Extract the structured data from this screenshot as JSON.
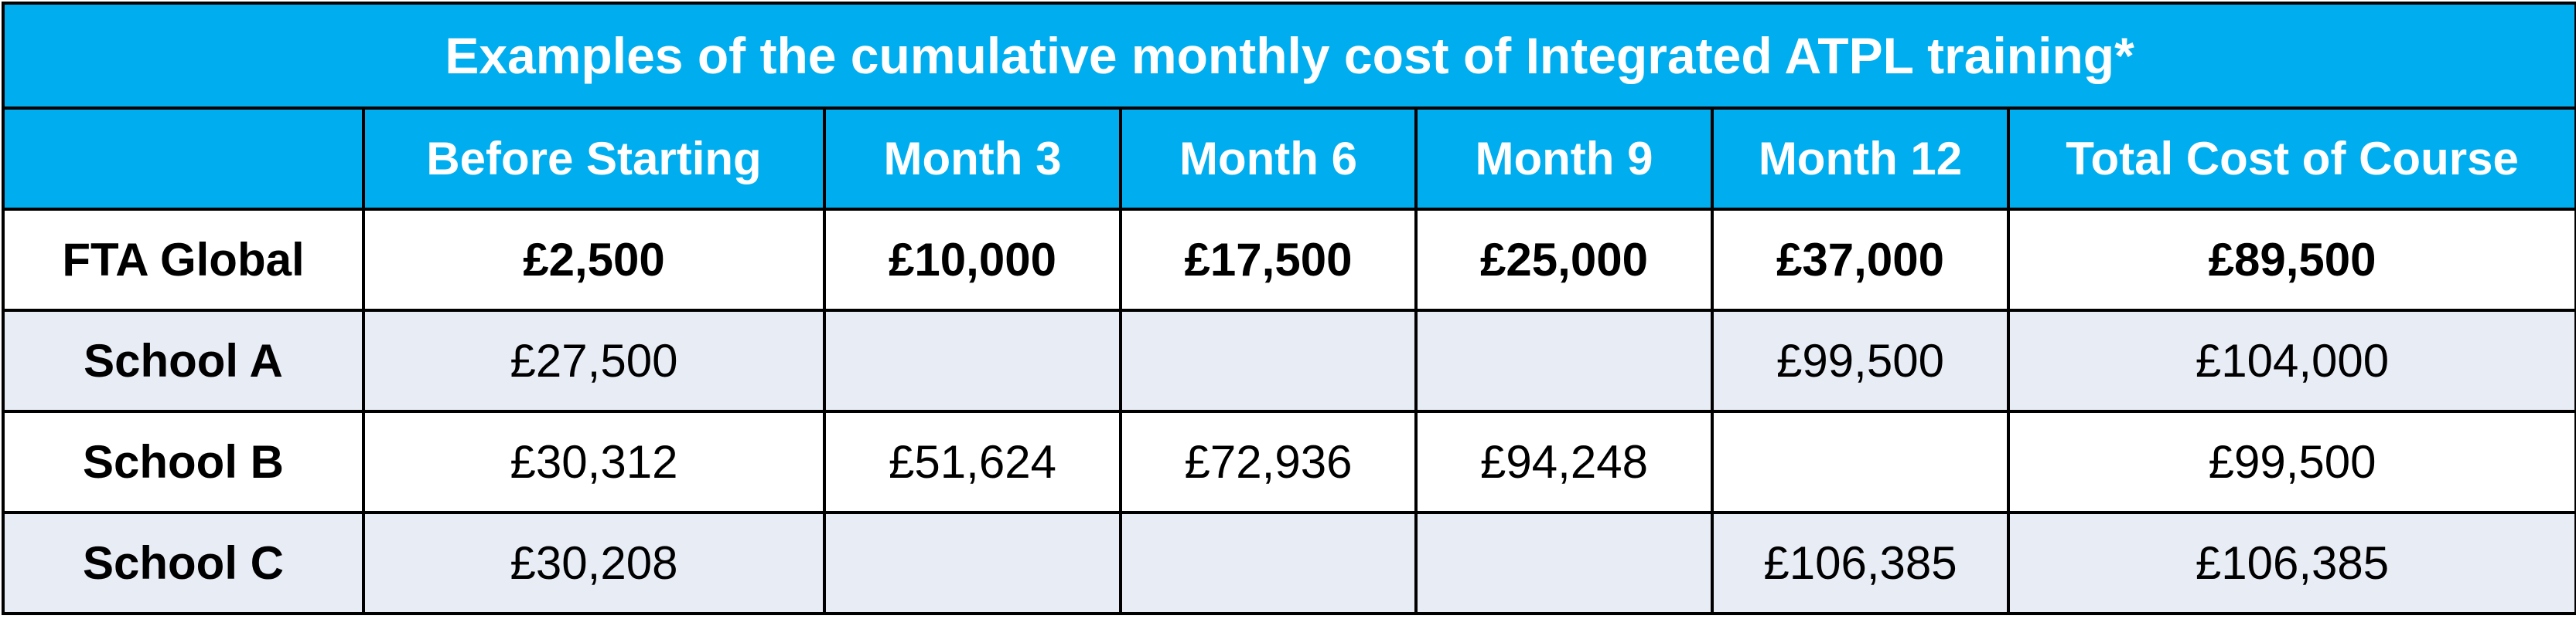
{
  "chart_data": {
    "type": "table",
    "title": "Examples of the cumulative monthly cost of Integrated ATPL training*",
    "columns": [
      "",
      "Before Starting",
      "Month 3",
      "Month 6",
      "Month 9",
      "Month 12",
      "Total Cost of Course"
    ],
    "rows": [
      {
        "label": "FTA Global",
        "values": [
          "£2,500",
          "£10,000",
          "£17,500",
          "£25,000",
          "£37,000",
          "£89,500"
        ]
      },
      {
        "label": "School A",
        "values": [
          "£27,500",
          "",
          "",
          "",
          "£99,500",
          "£104,000"
        ]
      },
      {
        "label": "School B",
        "values": [
          "£30,312",
          "£51,624",
          "£72,936",
          "£94,248",
          "",
          "£99,500"
        ]
      },
      {
        "label": "School C",
        "values": [
          "£30,208",
          "",
          "",
          "",
          "£106,385",
          "£106,385"
        ]
      }
    ],
    "header_color": "#00AEEF",
    "alt_row_color": "#E8ECF5"
  }
}
